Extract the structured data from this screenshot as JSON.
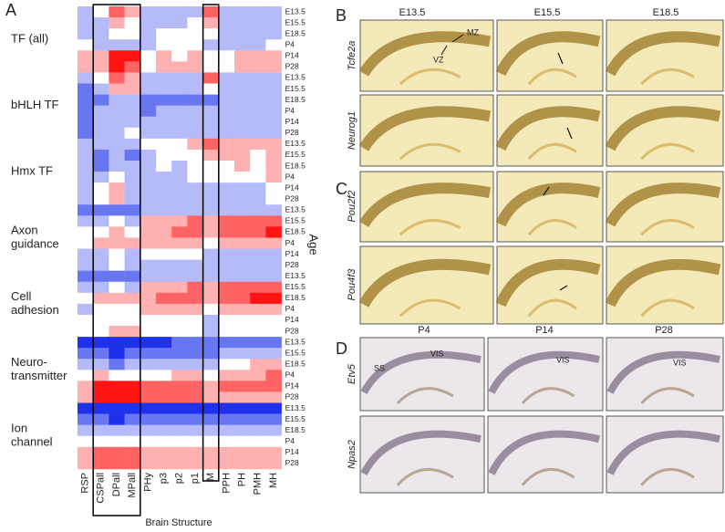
{
  "panel_a": {
    "label": "A",
    "x_label": "Brain Structure",
    "y_label": "Age",
    "structures": [
      "RSP",
      "CSPall",
      "DPall",
      "MPall",
      "PHy",
      "p3",
      "p2",
      "p1",
      "M",
      "PPH",
      "PH",
      "PMH",
      "MH"
    ],
    "ages": [
      "E13.5",
      "E15.5",
      "E18.5",
      "P4",
      "P14",
      "P28"
    ],
    "groups": [
      {
        "name": [
          "TF (all)"
        ],
        "values": [
          [
            -1,
            0,
            2,
            1,
            -1,
            -1,
            -1,
            -1,
            2,
            -1,
            -1,
            -1,
            -1
          ],
          [
            -1,
            -1,
            1,
            0,
            -1,
            -1,
            -1,
            0,
            1,
            -1,
            -1,
            -1,
            -1
          ],
          [
            -1,
            -1,
            0,
            0,
            -1,
            0,
            0,
            0,
            0,
            -1,
            -1,
            -1,
            -1
          ],
          [
            0,
            -1,
            -1,
            -1,
            -1,
            0,
            0,
            0,
            -1,
            -1,
            -1,
            -1,
            0
          ],
          [
            1,
            1,
            3,
            3,
            0,
            1,
            0,
            1,
            0,
            0,
            1,
            1,
            1
          ],
          [
            1,
            1,
            3,
            2,
            0,
            1,
            1,
            1,
            0,
            0,
            1,
            1,
            1
          ]
        ]
      },
      {
        "name": [
          "bHLH TF"
        ],
        "values": [
          [
            -1,
            0,
            2,
            1,
            -1,
            -1,
            -1,
            -1,
            2,
            -1,
            -1,
            -1,
            -1
          ],
          [
            -2,
            -1,
            1,
            1,
            -1,
            -1,
            -1,
            -1,
            0,
            -1,
            -1,
            -1,
            -1
          ],
          [
            -2,
            -2,
            -1,
            -1,
            -2,
            -2,
            -2,
            -2,
            -2,
            -1,
            -1,
            -1,
            -1
          ],
          [
            -2,
            -1,
            -1,
            -1,
            -2,
            -1,
            -1,
            -1,
            -1,
            -1,
            -1,
            -1,
            -1
          ],
          [
            -2,
            -1,
            -1,
            -1,
            -1,
            -1,
            -1,
            -1,
            -1,
            -1,
            -1,
            -1,
            -1
          ],
          [
            -2,
            -1,
            -1,
            0,
            -1,
            -1,
            -1,
            -1,
            -1,
            -1,
            -1,
            -1,
            -1
          ]
        ]
      },
      {
        "name": [
          "Hmx TF"
        ],
        "values": [
          [
            -1,
            -1,
            -1,
            -1,
            0,
            0,
            0,
            1,
            2,
            1,
            1,
            1,
            1
          ],
          [
            -1,
            -2,
            -1,
            -2,
            -1,
            0,
            0,
            0,
            1,
            1,
            1,
            0,
            1
          ],
          [
            -1,
            -2,
            -1,
            -1,
            -1,
            0,
            -1,
            0,
            0,
            0,
            1,
            0,
            1
          ],
          [
            -1,
            -1,
            0,
            -1,
            -1,
            -1,
            -1,
            0,
            0,
            0,
            0,
            0,
            1
          ],
          [
            -1,
            0,
            1,
            -1,
            -1,
            -1,
            -1,
            -1,
            -1,
            -1,
            -1,
            -1,
            0
          ],
          [
            -1,
            0,
            1,
            -1,
            -1,
            -1,
            -1,
            -1,
            -1,
            -1,
            -1,
            -1,
            0
          ]
        ]
      },
      {
        "name": [
          "Axon",
          "guidance"
        ],
        "values": [
          [
            -2,
            -2,
            -2,
            -2,
            -1,
            -1,
            -1,
            -1,
            -1,
            -1,
            -1,
            -1,
            -1
          ],
          [
            -1,
            -1,
            0,
            -1,
            1,
            1,
            1,
            2,
            1,
            2,
            2,
            2,
            2
          ],
          [
            0,
            0,
            1,
            0,
            1,
            1,
            2,
            2,
            1,
            2,
            2,
            2,
            3
          ],
          [
            0,
            1,
            1,
            1,
            1,
            1,
            1,
            1,
            0,
            1,
            1,
            1,
            1
          ],
          [
            -1,
            -1,
            0,
            -1,
            0,
            0,
            0,
            0,
            -1,
            -1,
            -1,
            -1,
            -1
          ],
          [
            -1,
            -1,
            0,
            -1,
            -1,
            -1,
            -1,
            -1,
            -1,
            -1,
            -1,
            -1,
            -1
          ]
        ]
      },
      {
        "name": [
          "Cell",
          "adhesion"
        ],
        "values": [
          [
            -2,
            -2,
            -2,
            -2,
            -1,
            -1,
            -1,
            -1,
            -1,
            -1,
            -1,
            -1,
            -1
          ],
          [
            -1,
            -1,
            0,
            -1,
            1,
            1,
            1,
            2,
            1,
            2,
            2,
            2,
            2
          ],
          [
            0,
            1,
            1,
            1,
            1,
            2,
            2,
            2,
            1,
            2,
            2,
            3,
            3
          ],
          [
            -1,
            0,
            0,
            0,
            1,
            1,
            1,
            1,
            0,
            1,
            1,
            1,
            1
          ],
          [
            0,
            0,
            0,
            0,
            0,
            0,
            0,
            0,
            -1,
            0,
            0,
            0,
            0
          ],
          [
            0,
            0,
            1,
            1,
            0,
            0,
            0,
            0,
            -1,
            0,
            0,
            0,
            0
          ]
        ]
      },
      {
        "name": [
          "Neuro-",
          "transmitter"
        ],
        "values": [
          [
            -3,
            -3,
            -3,
            -3,
            -3,
            -3,
            -2,
            -2,
            -2,
            -2,
            -2,
            -2,
            -2
          ],
          [
            -2,
            -2,
            -3,
            -2,
            -2,
            -2,
            -2,
            -2,
            -2,
            -1,
            -1,
            -1,
            -1
          ],
          [
            -1,
            -1,
            -2,
            -1,
            -1,
            -1,
            -1,
            -1,
            -1,
            0,
            0,
            1,
            1
          ],
          [
            0,
            1,
            0,
            0,
            0,
            0,
            1,
            1,
            0,
            1,
            1,
            1,
            2
          ],
          [
            1,
            3,
            3,
            3,
            2,
            2,
            2,
            2,
            1,
            2,
            2,
            2,
            2
          ],
          [
            1,
            3,
            3,
            3,
            2,
            2,
            2,
            2,
            1,
            1,
            1,
            1,
            1
          ]
        ]
      },
      {
        "name": [
          "Ion",
          "channel"
        ],
        "values": [
          [
            -3,
            -3,
            -3,
            -3,
            -3,
            -3,
            -3,
            -3,
            -3,
            -3,
            -3,
            -3,
            -3
          ],
          [
            -2,
            -2,
            -3,
            -2,
            -2,
            -2,
            -2,
            -2,
            -2,
            -2,
            -2,
            -2,
            -2
          ],
          [
            -1,
            -1,
            -1,
            -1,
            -1,
            -1,
            -1,
            -1,
            -1,
            -1,
            -1,
            -1,
            -1
          ],
          [
            0,
            0,
            0,
            0,
            0,
            0,
            0,
            0,
            0,
            0,
            0,
            0,
            0
          ],
          [
            1,
            2,
            2,
            2,
            1,
            1,
            1,
            1,
            1,
            1,
            1,
            1,
            1
          ],
          [
            1,
            2,
            2,
            2,
            1,
            1,
            1,
            1,
            1,
            1,
            1,
            1,
            1
          ]
        ]
      }
    ]
  },
  "panel_b": {
    "label": "B",
    "columns": [
      "E13.5",
      "E15.5",
      "E18.5"
    ],
    "genes": [
      "Tcfe2a",
      "Neurog1"
    ],
    "annotations": [
      "MZ",
      "VZ"
    ]
  },
  "panel_c": {
    "label": "C",
    "genes": [
      "Pou2f2",
      "Pou4f3"
    ]
  },
  "panel_d": {
    "label": "D",
    "columns": [
      "P4",
      "P14",
      "P28"
    ],
    "genes": [
      "Etv5",
      "Npas2"
    ],
    "annotations": [
      "SS",
      "VIS",
      "VIS",
      "VIS"
    ]
  }
}
